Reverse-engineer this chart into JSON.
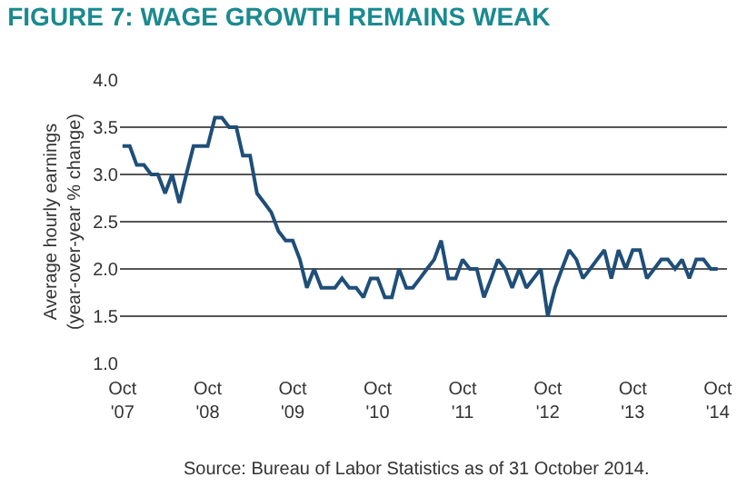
{
  "chart_data": {
    "type": "line",
    "title": "FIGURE 7: WAGE GROWTH REMAINS WEAK",
    "ylabel": "Average hourly earnings\n(year-over-year % change)",
    "annotations": [
      "Source: Bureau of Labor Statistics as of 31 October 2014."
    ],
    "x": [
      "2007-10",
      "2007-11",
      "2007-12",
      "2008-01",
      "2008-02",
      "2008-03",
      "2008-04",
      "2008-05",
      "2008-06",
      "2008-07",
      "2008-08",
      "2008-09",
      "2008-10",
      "2008-11",
      "2008-12",
      "2009-01",
      "2009-02",
      "2009-03",
      "2009-04",
      "2009-05",
      "2009-06",
      "2009-07",
      "2009-08",
      "2009-09",
      "2009-10",
      "2009-11",
      "2009-12",
      "2010-01",
      "2010-02",
      "2010-03",
      "2010-04",
      "2010-05",
      "2010-06",
      "2010-07",
      "2010-08",
      "2010-09",
      "2010-10",
      "2010-11",
      "2010-12",
      "2011-01",
      "2011-02",
      "2011-03",
      "2011-04",
      "2011-05",
      "2011-06",
      "2011-07",
      "2011-08",
      "2011-09",
      "2011-10",
      "2011-11",
      "2011-12",
      "2012-01",
      "2012-02",
      "2012-03",
      "2012-04",
      "2012-05",
      "2012-06",
      "2012-07",
      "2012-08",
      "2012-09",
      "2012-10",
      "2012-11",
      "2012-12",
      "2013-01",
      "2013-02",
      "2013-03",
      "2013-04",
      "2013-05",
      "2013-06",
      "2013-07",
      "2013-08",
      "2013-09",
      "2013-10",
      "2013-11",
      "2013-12",
      "2014-01",
      "2014-02",
      "2014-03",
      "2014-04",
      "2014-05",
      "2014-06",
      "2014-07",
      "2014-08",
      "2014-09",
      "2014-10"
    ],
    "series": [
      {
        "color": "#1f4e79",
        "values": [
          3.3,
          3.3,
          3.1,
          3.1,
          3.0,
          3.0,
          2.8,
          3.0,
          2.7,
          3.0,
          3.3,
          3.3,
          3.3,
          3.6,
          3.6,
          3.5,
          3.5,
          3.2,
          3.2,
          2.8,
          2.7,
          2.6,
          2.4,
          2.3,
          2.3,
          2.1,
          1.8,
          2.0,
          1.8,
          1.8,
          1.8,
          1.9,
          1.8,
          1.8,
          1.7,
          1.9,
          1.9,
          1.7,
          1.7,
          2.0,
          1.8,
          1.8,
          1.9,
          2.0,
          2.1,
          2.3,
          1.9,
          1.9,
          2.1,
          2.0,
          2.0,
          1.7,
          1.9,
          2.1,
          2.0,
          1.8,
          2.0,
          1.8,
          1.9,
          2.0,
          1.5,
          1.8,
          2.0,
          2.2,
          2.1,
          1.9,
          2.0,
          2.1,
          2.2,
          1.9,
          2.2,
          2.0,
          2.2,
          2.2,
          1.9,
          2.0,
          2.1,
          2.1,
          2.0,
          2.1,
          1.9,
          2.1,
          2.1,
          2.0,
          2.0
        ]
      }
    ],
    "xlim": [
      "2007-09-20",
      "2014-11-10"
    ],
    "xticks": [
      {
        "value": "2007-10",
        "label": "Oct\n'07"
      },
      {
        "value": "2008-10",
        "label": "Oct\n'08"
      },
      {
        "value": "2009-10",
        "label": "Oct\n'09"
      },
      {
        "value": "2010-10",
        "label": "Oct\n'10"
      },
      {
        "value": "2011-10",
        "label": "Oct\n'11"
      },
      {
        "value": "2012-10",
        "label": "Oct\n'12"
      },
      {
        "value": "2013-10",
        "label": "Oct\n'13"
      },
      {
        "value": "2014-10",
        "label": "Oct\n'14"
      }
    ],
    "ylim": [
      1.0,
      4.0
    ],
    "yticks": [
      {
        "value": 1.0,
        "label": "1.0"
      },
      {
        "value": 1.5,
        "label": "1.5"
      },
      {
        "value": 2.0,
        "label": "2.0"
      },
      {
        "value": 2.5,
        "label": "2.5"
      },
      {
        "value": 3.0,
        "label": "3.0"
      },
      {
        "value": 3.5,
        "label": "3.5"
      },
      {
        "value": 4.0,
        "label": "4.0"
      }
    ],
    "grid": "y",
    "marker": "none",
    "line_style": "solid"
  }
}
